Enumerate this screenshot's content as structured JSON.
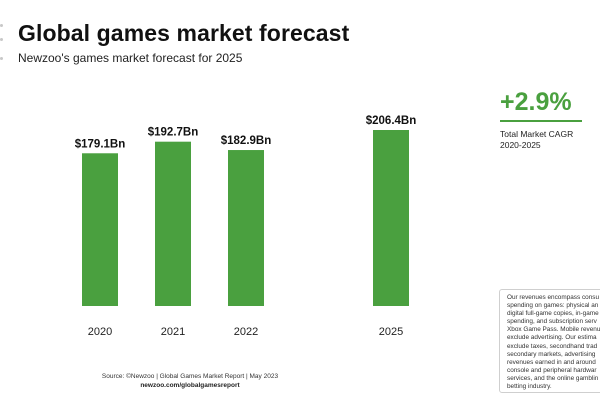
{
  "header": {
    "title": "Global games market forecast",
    "subtitle": "Newzoo's games market forecast for 2025"
  },
  "chart_data": {
    "type": "bar",
    "categories": [
      "2020",
      "2021",
      "2022",
      "2025"
    ],
    "values": [
      179.1,
      192.7,
      182.9,
      206.4
    ],
    "value_labels": [
      "$179.1Bn",
      "$192.7Bn",
      "$182.9Bn",
      "$206.4Bn"
    ],
    "unit": "Bn USD",
    "ylim": [
      0,
      206.4
    ],
    "grid": false,
    "color": "#4aa03f",
    "title": "Global games market forecast",
    "subtitle": "Newzoo's games market forecast for 2025"
  },
  "cagr": {
    "value": "+2.9%",
    "label": "Total Market CAGR\n2020-2025",
    "color": "#4aa03f"
  },
  "note": {
    "text": "Our revenues encompass consu\nspending on games: physical an\ndigital full-game copies, in-game\nspending, and subscription serv\nXbox Game Pass. Mobile revenu\nexclude advertising. Our estima\nexclude taxes, secondhand trad\nsecondary markets, advertising\nrevenues earned in and around\nconsole and peripheral hardwar\nservices, and the online gamblin\nbetting industry."
  },
  "footer": {
    "source": "Source: ©Newzoo | Global Games Market Report | May 2023",
    "url": "newzoo.com/globalgamesreport"
  }
}
